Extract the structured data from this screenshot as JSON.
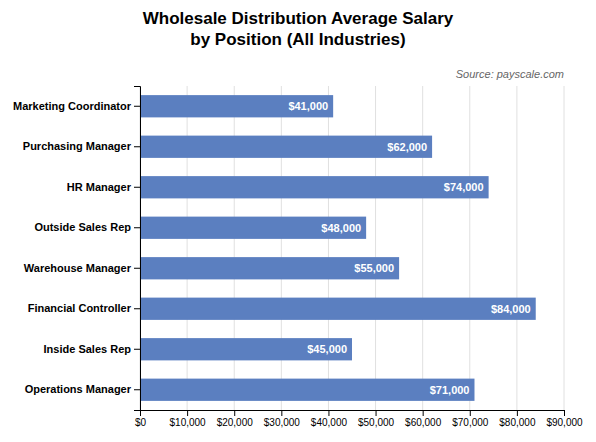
{
  "chart_data": {
    "type": "bar",
    "orientation": "horizontal",
    "title": "Wholesale Distribution Average Salary\nby Position (All Industries)",
    "annotations": [
      "Source: payscale.com"
    ],
    "categories": [
      "Operations Manager",
      "Inside Sales Rep",
      "Financial Controller",
      "Warehouse Manager",
      "Outside Sales Rep",
      "HR Manager",
      "Purchasing Manager",
      "Marketing Coordinator"
    ],
    "values": [
      71000,
      45000,
      84000,
      55000,
      48000,
      74000,
      62000,
      41000
    ],
    "value_labels": [
      "$71,000",
      "$45,000",
      "$84,000",
      "$55,000",
      "$48,000",
      "$74,000",
      "$62,000",
      "$41,000"
    ],
    "data_labels": true,
    "color": "#5B7FC0",
    "xlim": [
      0,
      90000
    ],
    "xticks": [
      {
        "value": 0,
        "label": "$0"
      },
      {
        "value": 10000,
        "label": "$10,000"
      },
      {
        "value": 20000,
        "label": "$20,000"
      },
      {
        "value": 30000,
        "label": "$30,000"
      },
      {
        "value": 40000,
        "label": "$40,000"
      },
      {
        "value": 50000,
        "label": "$50,000"
      },
      {
        "value": 60000,
        "label": "$60,000"
      },
      {
        "value": 70000,
        "label": "$70,000"
      },
      {
        "value": 80000,
        "label": "$80,000"
      },
      {
        "value": 90000,
        "label": "$90,000"
      }
    ],
    "grid": true
  }
}
